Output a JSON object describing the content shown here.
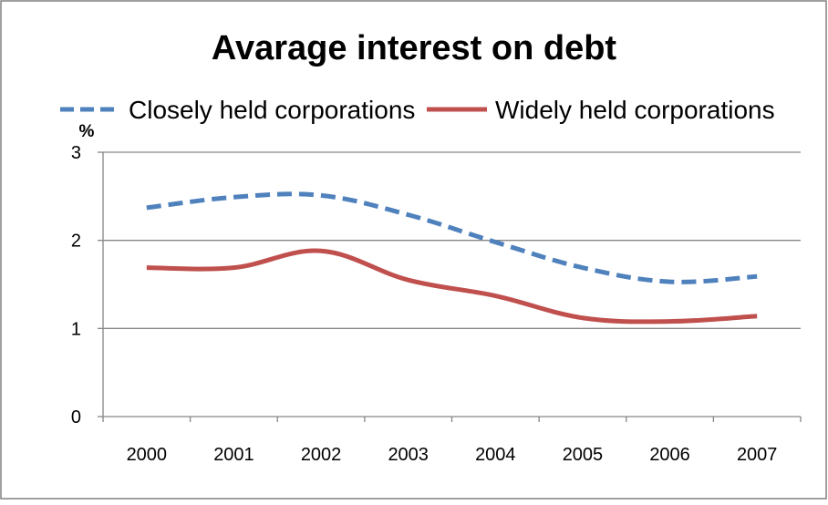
{
  "chart_data": {
    "type": "line",
    "title": "Avarage interest on debt",
    "ylabel": "%",
    "xlabel": "",
    "categories": [
      "2000",
      "2001",
      "2002",
      "2003",
      "2004",
      "2005",
      "2006",
      "2007"
    ],
    "ylim": [
      0,
      3
    ],
    "yticks": [
      "0",
      "1",
      "2",
      "3"
    ],
    "grid": "horizontal",
    "legend_position": "top",
    "series": [
      {
        "name": "Closely held corporations",
        "values": [
          2.37,
          2.49,
          2.51,
          2.29,
          1.98,
          1.69,
          1.53,
          1.59
        ],
        "color": "#4f81bd",
        "style": "dashed"
      },
      {
        "name": "Widely held corporations",
        "values": [
          1.69,
          1.69,
          1.88,
          1.55,
          1.37,
          1.12,
          1.08,
          1.14
        ],
        "color": "#c0504d",
        "style": "solid"
      }
    ]
  }
}
